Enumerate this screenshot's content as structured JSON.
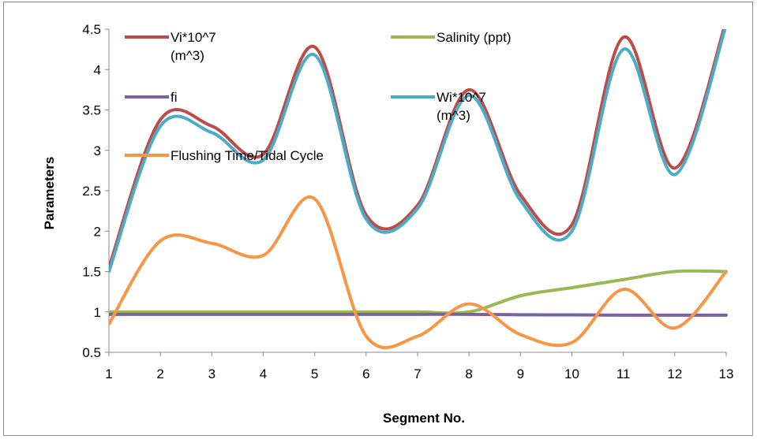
{
  "chart_data": {
    "type": "line",
    "title": "",
    "xlabel": "Segment No.",
    "ylabel": "Parameters",
    "x": [
      1,
      2,
      3,
      4,
      5,
      6,
      7,
      8,
      9,
      10,
      11,
      12,
      13
    ],
    "xlim": [
      1,
      13
    ],
    "ylim": [
      0.5,
      4.5
    ],
    "yticks": [
      "0.5",
      "1",
      "1.5",
      "2",
      "2.5",
      "3",
      "3.5",
      "4",
      "4.5"
    ],
    "xticks": [
      "1",
      "2",
      "3",
      "4",
      "5",
      "6",
      "7",
      "8",
      "9",
      "10",
      "11",
      "12",
      "13"
    ],
    "grid": false,
    "legend_position": "top-left (inside plot)",
    "series": [
      {
        "name": "Vi*10^7 (m^3)",
        "color": "#be4b48",
        "values": [
          1.55,
          3.38,
          3.3,
          2.95,
          4.28,
          2.2,
          2.32,
          3.75,
          2.45,
          2.08,
          4.4,
          2.78,
          4.6
        ]
      },
      {
        "name": "Salinity (ppt)",
        "color": "#98b954",
        "values": [
          1.0,
          1.0,
          1.0,
          1.0,
          1.0,
          1.0,
          1.0,
          1.0,
          1.2,
          1.3,
          1.4,
          1.5,
          1.5
        ]
      },
      {
        "name": "fi",
        "color": "#7d60a0",
        "values": [
          0.97,
          0.97,
          0.97,
          0.97,
          0.97,
          0.97,
          0.97,
          0.97,
          0.965,
          0.963,
          0.96,
          0.96,
          0.96
        ]
      },
      {
        "name": "Wi*10^7 (m^3)",
        "color": "#4aacc6",
        "values": [
          1.5,
          3.3,
          3.22,
          2.88,
          4.18,
          2.15,
          2.28,
          3.68,
          2.38,
          2.0,
          4.25,
          2.7,
          4.55
        ]
      },
      {
        "name": "Flushing Time/Tidal Cycle",
        "color": "#f79646",
        "values": [
          0.85,
          1.88,
          1.85,
          1.7,
          2.4,
          0.7,
          0.7,
          1.1,
          0.72,
          0.62,
          1.28,
          0.8,
          1.5
        ]
      }
    ],
    "legend": [
      {
        "line1": "Vi*10^7",
        "line2": "(m^3)"
      },
      {
        "line1": "Salinity (ppt)",
        "line2": ""
      },
      {
        "line1": "fi",
        "line2": ""
      },
      {
        "line1": "Wi*10^7",
        "line2": "(m^3)"
      },
      {
        "line1": "Flushing Time/Tidal Cycle",
        "line2": ""
      }
    ]
  }
}
